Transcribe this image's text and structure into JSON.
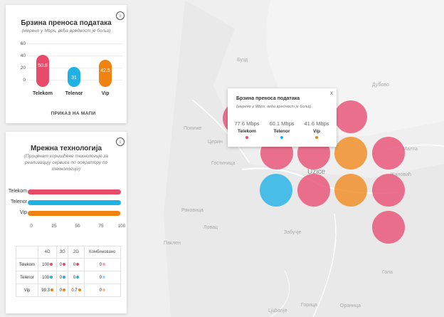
{
  "map": {
    "places": [
      {
        "name": "Бузд"
      },
      {
        "name": "Дубово"
      },
      {
        "name": "Пониже"
      },
      {
        "name": "Гостиница"
      },
      {
        "name": "Uzice"
      },
      {
        "name": "Жиловић"
      },
      {
        "name": "Раковица"
      },
      {
        "name": "Паклен"
      },
      {
        "name": "Забучје"
      },
      {
        "name": "Ljubanje"
      },
      {
        "name": "Горица"
      },
      {
        "name": "Гола"
      },
      {
        "name": "Ловац"
      },
      {
        "name": "Малта"
      },
      {
        "name": "Ораница"
      },
      {
        "name": "Церин"
      }
    ],
    "circles": [
      {
        "color": "#e8587a"
      },
      {
        "color": "#e8587a"
      },
      {
        "color": "#e8587a"
      },
      {
        "color": "#e8587a"
      },
      {
        "color": "#f0902a"
      },
      {
        "color": "#e8587a"
      },
      {
        "color": "#2bb5e6"
      },
      {
        "color": "#e8587a"
      },
      {
        "color": "#f0902a"
      },
      {
        "color": "#e8587a"
      },
      {
        "color": "#e8587a"
      }
    ]
  },
  "speed_panel": {
    "title": "Брзина преноса података",
    "subtitle": "(мерено у Mbps, већа вредност је боља)",
    "info_icon": "i",
    "show_on_map_label": "ПРИКАЗ НА МАПИ",
    "y_ticks": [
      "60",
      "40",
      "20",
      "0"
    ],
    "chart_data": {
      "type": "bar",
      "categories": [
        "Telekom",
        "Telenor",
        "Vip"
      ],
      "values": [
        50.8,
        31,
        42.5
      ],
      "value_labels": [
        "50.8",
        "31",
        "42.5"
      ],
      "colors": [
        "#e84a6a",
        "#1fb0e4",
        "#f0820f"
      ],
      "ylim": [
        0,
        60
      ]
    }
  },
  "tech_panel": {
    "title": "Мрежна технологија",
    "subtitle": "(Проценат коришћене технологије за реализацију сервиса по оператору по технологији)",
    "info_icon": "i",
    "x_ticks": [
      "0",
      "25",
      "50",
      "75",
      "100"
    ],
    "chart_data": {
      "type": "bar",
      "orientation": "horizontal",
      "categories": [
        "Telekom",
        "Telenor",
        "Vip"
      ],
      "values": [
        100,
        100,
        99.3
      ],
      "colors": [
        "#e84a6a",
        "#1fb0e4",
        "#f0820f"
      ],
      "xlim": [
        0,
        100
      ]
    },
    "table": {
      "headers": [
        "",
        "4G",
        "3G",
        "2G",
        "Комбиновано"
      ],
      "rows": [
        {
          "name": "Telekom",
          "c4g": "100",
          "c3g": "0",
          "c2g": "0",
          "comb": "0"
        },
        {
          "name": "Telenor",
          "c4g": "100",
          "c3g": "0",
          "c2g": "0",
          "comb": "0"
        },
        {
          "name": "Vip",
          "c4g": "99.3",
          "c3g": "0",
          "c2g": "0.7",
          "comb": "0"
        }
      ]
    }
  },
  "popup": {
    "title": "Брзина преноса података",
    "subtitle": "(мерено у Mbps, већа вредност је боља)",
    "close_label": "x",
    "operators": [
      {
        "value": "77.6 Mbps",
        "name": "Telekom",
        "color": "#e84a6a"
      },
      {
        "value": "60.1 Mbps",
        "name": "Telenor",
        "color": "#1fb0e4"
      },
      {
        "value": "41.6 Mbps",
        "name": "Vip",
        "color": "#f0820f"
      }
    ]
  }
}
